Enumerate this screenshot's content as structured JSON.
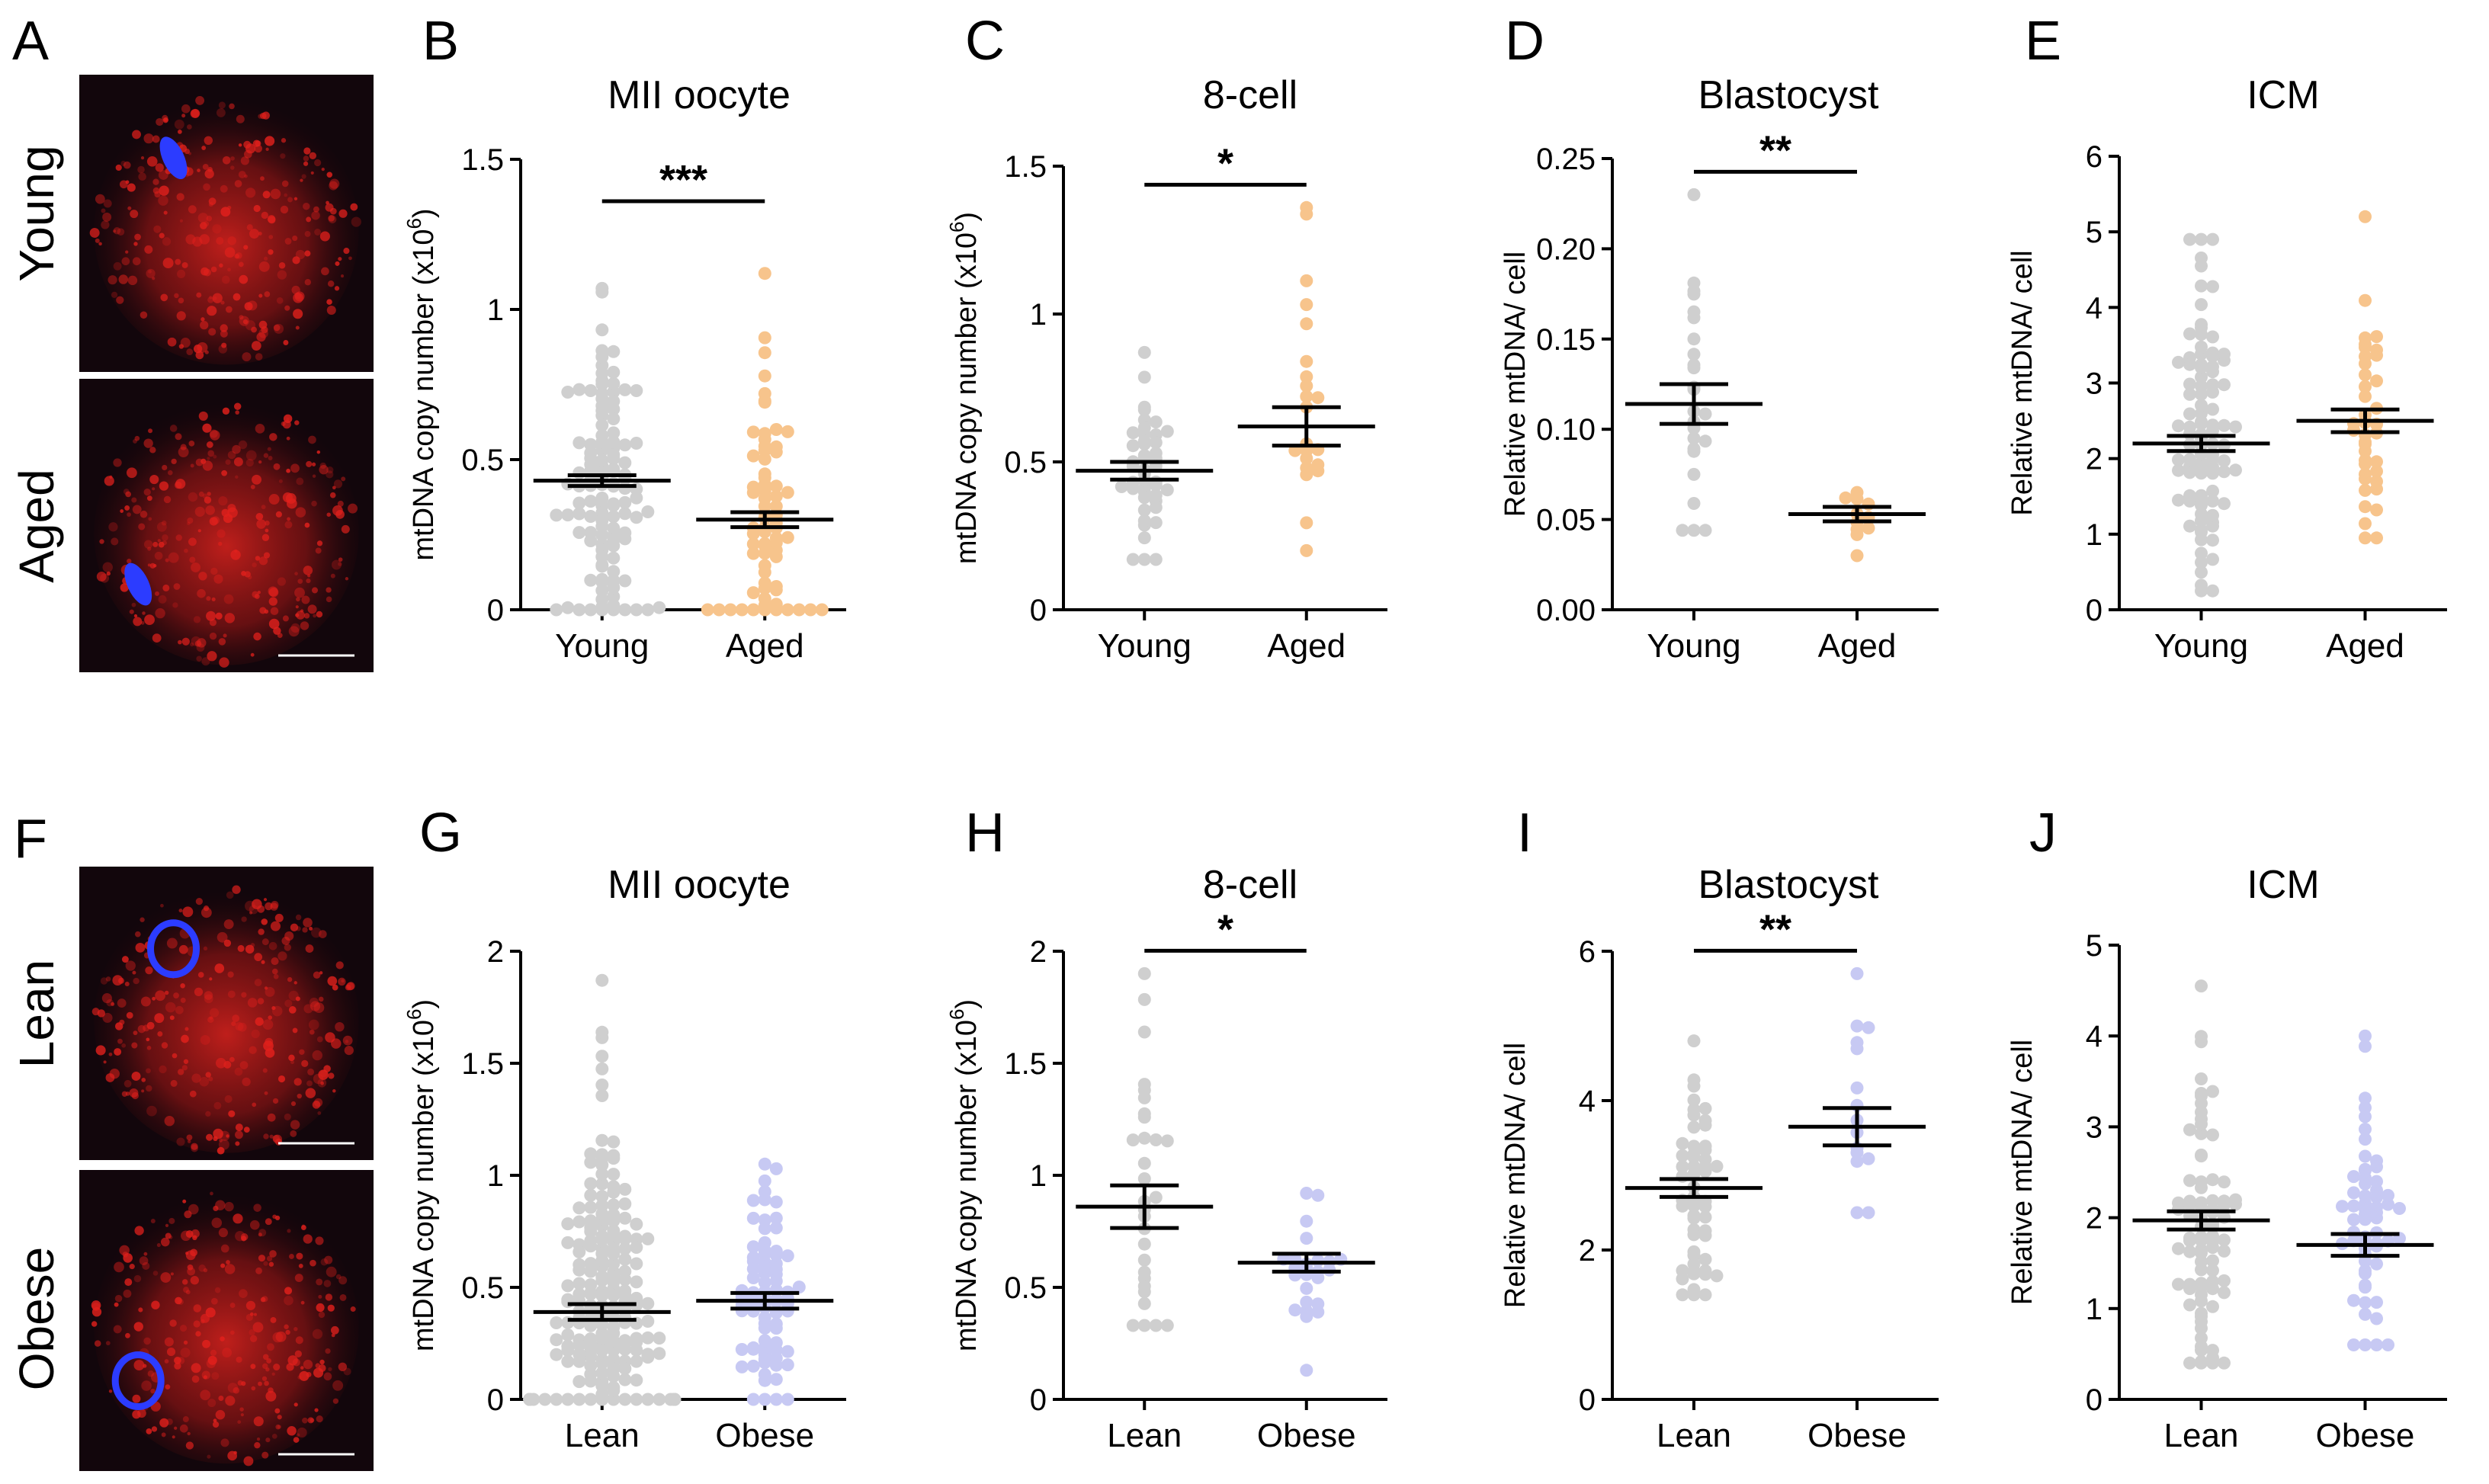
{
  "colors": {
    "young": "#cfcfcf",
    "aged": "#f7c48c",
    "lean": "#cfcfcf",
    "obese": "#c7c9f3",
    "micro_bg": "#12060c",
    "micro_red": "#e0201c",
    "micro_blue": "#2c3cff"
  },
  "images": [
    {
      "row": "top",
      "panel_label": "A",
      "labels": [
        "Young",
        "Aged"
      ]
    },
    {
      "row": "bottom",
      "panel_label": "F",
      "labels": [
        "Lean",
        "Obese"
      ]
    }
  ],
  "chart_data": [
    {
      "panel": "B",
      "type": "scatter",
      "title": "MII oocyte",
      "ylabel": "mtDNA copy number (x10",
      "ylabel_sup": "6",
      "ylabel_end": ")",
      "ylim": [
        0,
        1.5
      ],
      "yticks": [
        "0",
        "0.5",
        "1",
        "1.5"
      ],
      "ytick_values": [
        0,
        0.5,
        1,
        1.5
      ],
      "categories": [
        "Young",
        "Aged"
      ],
      "color_keys": [
        "young",
        "aged"
      ],
      "means": [
        0.43,
        0.3
      ],
      "sems": [
        0.018,
        0.025
      ],
      "n": [
        120,
        70
      ],
      "ranges": [
        [
          0.0,
          1.07
        ],
        [
          0.0,
          1.12
        ]
      ],
      "significance": "***"
    },
    {
      "panel": "C",
      "type": "scatter",
      "title": "8-cell",
      "ylabel": "mtDNA copy number (x10",
      "ylabel_sup": "6",
      "ylabel_end": ")",
      "ylim": [
        0,
        1.5
      ],
      "yticks": [
        "0",
        "0.5",
        "1",
        "1.5"
      ],
      "ytick_values": [
        0,
        0.5,
        1,
        1.5
      ],
      "categories": [
        "Young",
        "Aged"
      ],
      "color_keys": [
        "young",
        "aged"
      ],
      "means": [
        0.47,
        0.62
      ],
      "sems": [
        0.03,
        0.065
      ],
      "n": [
        45,
        22
      ],
      "ranges": [
        [
          0.17,
          0.87
        ],
        [
          0.2,
          1.36
        ]
      ],
      "significance": "*"
    },
    {
      "panel": "D",
      "type": "scatter",
      "title": "Blastocyst",
      "ylabel": "Relative mtDNA/ cell",
      "ylabel_sup": "",
      "ylabel_end": "",
      "ylim": [
        0,
        0.25
      ],
      "yticks": [
        "0.00",
        "0.05",
        "0.10",
        "0.15",
        "0.20",
        "0.25"
      ],
      "ytick_values": [
        0,
        0.05,
        0.1,
        0.15,
        0.2,
        0.25
      ],
      "categories": [
        "Young",
        "Aged"
      ],
      "color_keys": [
        "young",
        "aged"
      ],
      "means": [
        0.114,
        0.053
      ],
      "sems": [
        0.011,
        0.004
      ],
      "n": [
        25,
        11
      ],
      "ranges": [
        [
          0.044,
          0.23
        ],
        [
          0.03,
          0.065
        ]
      ],
      "significance": "**"
    },
    {
      "panel": "E",
      "type": "scatter",
      "title": "ICM",
      "ylabel": "Relative mtDNA/ cell",
      "ylabel_sup": "",
      "ylabel_end": "",
      "ylim": [
        0,
        6
      ],
      "yticks": [
        "0",
        "1",
        "2",
        "3",
        "4",
        "5",
        "6"
      ],
      "ytick_values": [
        0,
        1,
        2,
        3,
        4,
        5,
        6
      ],
      "categories": [
        "Young",
        "Aged"
      ],
      "color_keys": [
        "young",
        "aged"
      ],
      "means": [
        2.2,
        2.5
      ],
      "sems": [
        0.1,
        0.15
      ],
      "n": [
        95,
        40
      ],
      "ranges": [
        [
          0.25,
          4.9
        ],
        [
          0.95,
          5.2
        ]
      ],
      "significance": ""
    },
    {
      "panel": "G",
      "type": "scatter",
      "title": "MII oocyte",
      "ylabel": "mtDNA copy number (x10",
      "ylabel_sup": "6",
      "ylabel_end": ")",
      "ylim": [
        0,
        2
      ],
      "yticks": [
        "0",
        "0.5",
        "1",
        "1.5",
        "2"
      ],
      "ytick_values": [
        0,
        0.5,
        1,
        1.5,
        2
      ],
      "categories": [
        "Lean",
        "Obese"
      ],
      "color_keys": [
        "lean",
        "obese"
      ],
      "means": [
        0.39,
        0.44
      ],
      "sems": [
        0.035,
        0.035
      ],
      "n": [
        200,
        80
      ],
      "ranges": [
        [
          0.0,
          1.87
        ],
        [
          0.0,
          1.05
        ]
      ],
      "significance": ""
    },
    {
      "panel": "H",
      "type": "scatter",
      "title": "8-cell",
      "ylabel": "mtDNA copy number (x10",
      "ylabel_sup": "6",
      "ylabel_end": ")",
      "ylim": [
        0,
        2
      ],
      "yticks": [
        "0",
        "0.5",
        "1",
        "1.5",
        "2"
      ],
      "ytick_values": [
        0,
        0.5,
        1,
        1.5,
        2
      ],
      "categories": [
        "Lean",
        "Obese"
      ],
      "color_keys": [
        "lean",
        "obese"
      ],
      "means": [
        0.86,
        0.61
      ],
      "sems": [
        0.095,
        0.04
      ],
      "n": [
        30,
        25
      ],
      "ranges": [
        [
          0.33,
          1.9
        ],
        [
          0.13,
          0.92
        ]
      ],
      "significance": "*"
    },
    {
      "panel": "I",
      "type": "scatter",
      "title": "Blastocyst",
      "ylabel": "Relative mtDNA/ cell",
      "ylabel_sup": "",
      "ylabel_end": "",
      "ylim": [
        0,
        6
      ],
      "yticks": [
        "0",
        "2",
        "4",
        "6"
      ],
      "ytick_values": [
        0,
        2,
        4,
        6
      ],
      "categories": [
        "Lean",
        "Obese"
      ],
      "color_keys": [
        "lean",
        "obese"
      ],
      "means": [
        2.83,
        3.65
      ],
      "sems": [
        0.12,
        0.25
      ],
      "n": [
        55,
        15
      ],
      "ranges": [
        [
          1.4,
          4.8
        ],
        [
          2.5,
          5.7
        ]
      ],
      "significance": "**"
    },
    {
      "panel": "J",
      "type": "scatter",
      "title": "ICM",
      "ylabel": "Relative mtDNA/ cell",
      "ylabel_sup": "",
      "ylabel_end": "",
      "ylim": [
        0,
        5
      ],
      "yticks": [
        "0",
        "1",
        "2",
        "3",
        "4",
        "5"
      ],
      "ytick_values": [
        0,
        1,
        2,
        3,
        4,
        5
      ],
      "categories": [
        "Lean",
        "Obese"
      ],
      "color_keys": [
        "lean",
        "obese"
      ],
      "means": [
        1.97,
        1.7
      ],
      "sems": [
        0.1,
        0.12
      ],
      "n": [
        85,
        60
      ],
      "ranges": [
        [
          0.4,
          4.55
        ],
        [
          0.6,
          4.0
        ]
      ],
      "significance": ""
    }
  ]
}
